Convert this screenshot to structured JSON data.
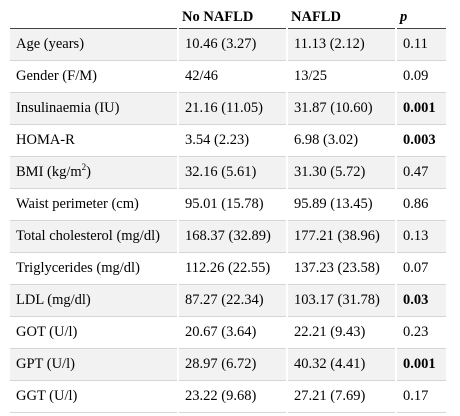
{
  "table": {
    "headers": [
      "",
      "No NAFLD",
      "NAFLD",
      "p"
    ],
    "rows": [
      {
        "label": "Age (years)",
        "label_sup": "",
        "label_tail": "",
        "no_nafld": "10.46 (3.27)",
        "nafld": "11.13 (2.12)",
        "p": "0.11",
        "p_bold": false
      },
      {
        "label": "Gender (F/M)",
        "label_sup": "",
        "label_tail": "",
        "no_nafld": "42/46",
        "nafld": "13/25",
        "p": "0.09",
        "p_bold": false
      },
      {
        "label": "Insulinaemia (IU)",
        "label_sup": "",
        "label_tail": "",
        "no_nafld": "21.16 (11.05)",
        "nafld": "31.87 (10.60)",
        "p": "0.001",
        "p_bold": true
      },
      {
        "label": "HOMA-R",
        "label_sup": "",
        "label_tail": "",
        "no_nafld": "3.54 (2.23)",
        "nafld": "6.98 (3.02)",
        "p": "0.003",
        "p_bold": true
      },
      {
        "label": "BMI (kg/m",
        "label_sup": "2",
        "label_tail": ")",
        "no_nafld": "32.16 (5.61)",
        "nafld": "31.30 (5.72)",
        "p": "0.47",
        "p_bold": false
      },
      {
        "label": "Waist perimeter (cm)",
        "label_sup": "",
        "label_tail": "",
        "no_nafld": "95.01 (15.78)",
        "nafld": "95.89 (13.45)",
        "p": "0.86",
        "p_bold": false
      },
      {
        "label": "Total cholesterol (mg/dl)",
        "label_sup": "",
        "label_tail": "",
        "no_nafld": "168.37 (32.89)",
        "nafld": "177.21 (38.96)",
        "p": "0.13",
        "p_bold": false
      },
      {
        "label": "Triglycerides (mg/dl)",
        "label_sup": "",
        "label_tail": "",
        "no_nafld": "112.26 (22.55)",
        "nafld": "137.23 (23.58)",
        "p": "0.07",
        "p_bold": false
      },
      {
        "label": "LDL (mg/dl)",
        "label_sup": "",
        "label_tail": "",
        "no_nafld": "87.27 (22.34)",
        "nafld": "103.17 (31.78)",
        "p": "0.03",
        "p_bold": true
      },
      {
        "label": "GOT (U/l)",
        "label_sup": "",
        "label_tail": "",
        "no_nafld": "20.67 (3.64)",
        "nafld": "22.21 (9.43)",
        "p": "0.23",
        "p_bold": false
      },
      {
        "label": "GPT (U/l)",
        "label_sup": "",
        "label_tail": "",
        "no_nafld": "28.97 (6.72)",
        "nafld": "40.32 (4.41)",
        "p": "0.001",
        "p_bold": true
      },
      {
        "label": "GGT (U/l)",
        "label_sup": "",
        "label_tail": "",
        "no_nafld": "23.22 (9.68)",
        "nafld": "27.21 (7.69)",
        "p": "0.17",
        "p_bold": false
      }
    ]
  }
}
